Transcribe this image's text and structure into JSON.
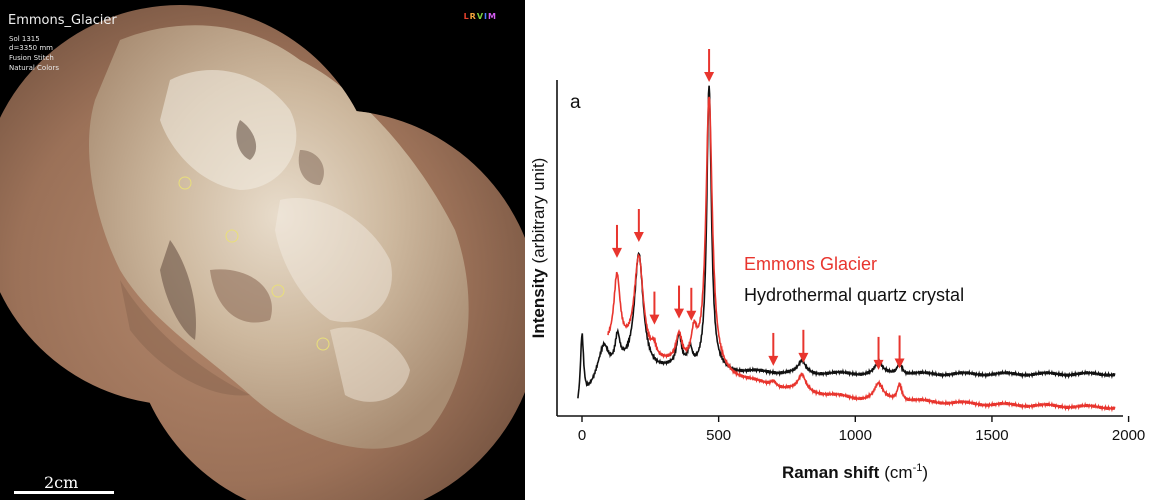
{
  "photo": {
    "target_name": "Emmons_Glacier",
    "sol": "Sol 1315",
    "distance": "d=3350 mm",
    "mode": "Fusion Stitch",
    "colors": "Natural Colors",
    "rmi_badge": [
      "L",
      "R",
      "V",
      "I",
      "M"
    ],
    "rmi_badge_colors": [
      "#e8412c",
      "#f2a33a",
      "#7fd23f",
      "#4a7dff",
      "#d35cf0"
    ],
    "scale_label": "2cm"
  },
  "chart_data": {
    "type": "line",
    "panel_label": "a",
    "xlabel": "Raman shift",
    "xlabel_unit": "(cm",
    "xlabel_sup": "-1",
    "xlabel_close": ")",
    "ylabel_bold": "Intensity",
    "ylabel_rest": "(arbitrary unit)",
    "xlim": [
      -100,
      2000
    ],
    "ylim": [
      0,
      1.0
    ],
    "xticks": [
      0,
      500,
      1000,
      1500,
      2000
    ],
    "xtick_labels": [
      "0",
      "500",
      "1000",
      "1500",
      "2000"
    ],
    "y_ticks_shown": false,
    "legend": {
      "placement": "center-right",
      "entries": [
        "Emmons Glacier",
        "Hydrothermal quartz crystal"
      ]
    },
    "series": [
      {
        "name": "Emmons Glacier",
        "color": "#e8352e",
        "baseline": [
          [
            95,
            0.17
          ],
          [
            250,
            0.13
          ],
          [
            500,
            0.1
          ],
          [
            700,
            0.065
          ],
          [
            1000,
            0.035
          ],
          [
            1500,
            0.02
          ],
          [
            1950,
            0.012
          ]
        ],
        "peaks": [
          [
            128,
            0.19,
            14
          ],
          [
            208,
            0.26,
            20
          ],
          [
            263,
            0.03,
            10
          ],
          [
            355,
            0.07,
            13
          ],
          [
            410,
            0.08,
            13
          ],
          [
            465,
            0.72,
            14
          ],
          [
            700,
            0.015,
            14
          ],
          [
            805,
            0.04,
            16
          ],
          [
            1085,
            0.04,
            18
          ],
          [
            1162,
            0.045,
            10
          ]
        ]
      },
      {
        "name": "Hydrothermal quartz crystal",
        "color": "#111111",
        "baseline": [
          [
            -15,
            0.0
          ],
          [
            60,
            0.08
          ],
          [
            150,
            0.11
          ],
          [
            350,
            0.11
          ],
          [
            550,
            0.105
          ],
          [
            1000,
            0.1
          ],
          [
            1950,
            0.1
          ]
        ],
        "peaks": [
          [
            0,
            0.18,
            7
          ],
          [
            80,
            0.08,
            22
          ],
          [
            130,
            0.08,
            11
          ],
          [
            208,
            0.3,
            19
          ],
          [
            355,
            0.08,
            11
          ],
          [
            395,
            0.05,
            10
          ],
          [
            465,
            0.75,
            10
          ],
          [
            805,
            0.03,
            15
          ],
          [
            1085,
            0.03,
            15
          ],
          [
            1162,
            0.03,
            11
          ]
        ]
      }
    ],
    "arrows_at": [
      128,
      208,
      265,
      355,
      400,
      465,
      700,
      810,
      1085,
      1162
    ],
    "arrow_color": "#e8352e"
  }
}
